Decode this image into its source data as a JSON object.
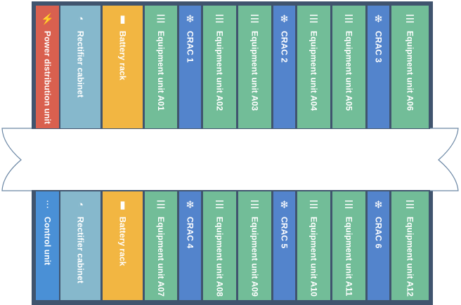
{
  "colors": {
    "frame": "#40546e",
    "power": "#d9604f",
    "rectifier": "#86b8cc",
    "battery": "#f2b642",
    "equipment": "#72bd98",
    "crac": "#5384cc",
    "control": "#4a90d6"
  },
  "top_row": [
    {
      "label": "Power distribution unit",
      "icon": "lightning-icon",
      "color": "#d9604f"
    },
    {
      "label": "Rectifier cabinet",
      "icon": "gauge-icon",
      "color": "#86b8cc"
    },
    {
      "label": "Battery rack",
      "icon": "battery-icon",
      "color": "#f2b642"
    },
    {
      "label": "Equipment unit A01",
      "icon": "database-icon",
      "color": "#72bd98"
    },
    {
      "label": "CRAC 1",
      "icon": "snowflake-icon",
      "color": "#5384cc"
    },
    {
      "label": "Equipment unit A02",
      "icon": "database-icon",
      "color": "#72bd98"
    },
    {
      "label": "Equipment unit A03",
      "icon": "database-icon",
      "color": "#72bd98"
    },
    {
      "label": "CRAC 2",
      "icon": "snowflake-icon",
      "color": "#5384cc"
    },
    {
      "label": "Equipment unit A04",
      "icon": "database-icon",
      "color": "#72bd98"
    },
    {
      "label": "Equipment unit A05",
      "icon": "database-icon",
      "color": "#72bd98"
    },
    {
      "label": "CRAC 3",
      "icon": "snowflake-icon",
      "color": "#5384cc"
    },
    {
      "label": "Equipment unit A06",
      "icon": "database-icon",
      "color": "#72bd98"
    }
  ],
  "bottom_row": [
    {
      "label": "Control unit",
      "icon": "sliders-icon",
      "color": "#4a90d6"
    },
    {
      "label": "Rectifier cabinet",
      "icon": "gauge-icon",
      "color": "#86b8cc"
    },
    {
      "label": "Battery rack",
      "icon": "battery-icon",
      "color": "#f2b642"
    },
    {
      "label": "Equipment unit A07",
      "icon": "database-icon",
      "color": "#72bd98"
    },
    {
      "label": "CRAC 4",
      "icon": "snowflake-icon",
      "color": "#5384cc"
    },
    {
      "label": "Equipment unit A08",
      "icon": "database-icon",
      "color": "#72bd98"
    },
    {
      "label": "Equipment unit A09",
      "icon": "database-icon",
      "color": "#72bd98"
    },
    {
      "label": "CRAC 5",
      "icon": "snowflake-icon",
      "color": "#5384cc"
    },
    {
      "label": "Equipment unit A10",
      "icon": "database-icon",
      "color": "#72bd98"
    },
    {
      "label": "Equipment unit A11",
      "icon": "database-icon",
      "color": "#72bd98"
    },
    {
      "label": "CRAC 6",
      "icon": "snowflake-icon",
      "color": "#5384cc"
    },
    {
      "label": "Equipment unit A12",
      "icon": "database-icon",
      "color": "#72bd98"
    }
  ]
}
